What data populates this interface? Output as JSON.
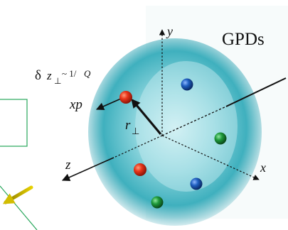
{
  "title": "GPDs",
  "labels": {
    "resolution_prefix": "δ",
    "resolution_var": "z",
    "resolution_sub": "⊥",
    "resolution_eq": "~ 1/",
    "resolution_Q": "Q",
    "momentum": "xp",
    "r": "r",
    "r_sub": "⊥",
    "axis_x": "x",
    "axis_y": "y",
    "axis_z": "z"
  },
  "colors": {
    "cloud": "#3fb8c4",
    "quark_red": "#e8351a",
    "quark_blue": "#1f5fc0",
    "quark_green": "#1e9a3a",
    "probe_arrow": "#d2bd00",
    "frame_green": "#27a65a"
  },
  "quarks": [
    {
      "color": "red",
      "role": "struck"
    },
    {
      "color": "blue"
    },
    {
      "color": "green"
    },
    {
      "color": "red"
    },
    {
      "color": "blue"
    },
    {
      "color": "green"
    }
  ]
}
